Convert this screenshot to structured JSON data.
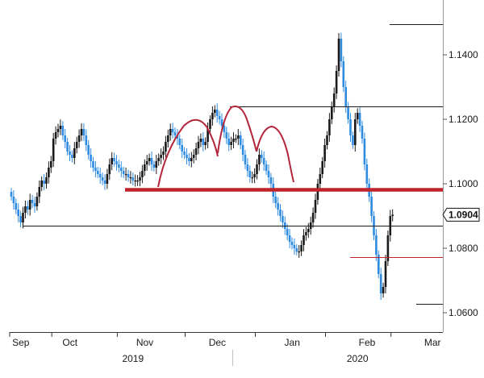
{
  "chart_data": {
    "type": "candlestick",
    "title": "",
    "xlabel": "",
    "ylabel": "",
    "ylim": [
      1.056,
      1.152
    ],
    "y_ticks": [
      "1.0600",
      "1.0800",
      "1.1000",
      "1.1200",
      "1.1400"
    ],
    "x_ticks": [
      {
        "label": "Sep",
        "index": 2
      },
      {
        "label": "Oct",
        "index": 23
      },
      {
        "label": "Nov",
        "index": 55
      },
      {
        "label": "Dec",
        "index": 86
      },
      {
        "label": "Jan",
        "index": 118
      },
      {
        "label": "Feb",
        "index": 150
      },
      {
        "label": "Mar",
        "index": 178
      }
    ],
    "years": [
      {
        "label": "2019",
        "index": 52
      },
      {
        "label": "2020",
        "index": 148
      }
    ],
    "last_price": "1.0904",
    "bullish_color": "#1a1a1a",
    "bearish_color": "#2f8be0",
    "close": [
      1.096,
      1.094,
      1.092,
      1.09,
      1.088,
      1.091,
      1.093,
      1.092,
      1.095,
      1.094,
      1.093,
      1.096,
      1.099,
      1.101,
      1.1,
      1.102,
      1.105,
      1.107,
      1.114,
      1.116,
      1.117,
      1.118,
      1.115,
      1.113,
      1.11,
      1.109,
      1.108,
      1.111,
      1.113,
      1.115,
      1.117,
      1.115,
      1.112,
      1.109,
      1.107,
      1.105,
      1.104,
      1.103,
      1.102,
      1.101,
      1.1,
      1.103,
      1.106,
      1.108,
      1.107,
      1.106,
      1.105,
      1.104,
      1.103,
      1.103,
      1.102,
      1.102,
      1.101,
      1.101,
      1.101,
      1.102,
      1.104,
      1.106,
      1.107,
      1.108,
      1.106,
      1.105,
      1.107,
      1.108,
      1.109,
      1.11,
      1.113,
      1.115,
      1.117,
      1.116,
      1.115,
      1.114,
      1.112,
      1.11,
      1.109,
      1.108,
      1.107,
      1.108,
      1.109,
      1.111,
      1.113,
      1.114,
      1.112,
      1.113,
      1.117,
      1.12,
      1.122,
      1.123,
      1.121,
      1.12,
      1.118,
      1.116,
      1.114,
      1.112,
      1.113,
      1.114,
      1.114,
      1.115,
      1.112,
      1.109,
      1.106,
      1.104,
      1.102,
      1.102,
      1.103,
      1.106,
      1.109,
      1.108,
      1.106,
      1.104,
      1.102,
      1.1,
      1.096,
      1.094,
      1.092,
      1.09,
      1.088,
      1.086,
      1.084,
      1.082,
      1.081,
      1.08,
      1.079,
      1.079,
      1.081,
      1.084,
      1.085,
      1.086,
      1.088,
      1.091,
      1.095,
      1.1,
      1.103,
      1.107,
      1.112,
      1.115,
      1.12,
      1.124,
      1.128,
      1.135,
      1.145,
      1.138,
      1.13,
      1.124,
      1.12,
      1.115,
      1.112,
      1.12,
      1.122,
      1.118,
      1.114,
      1.106,
      1.1,
      1.096,
      1.09,
      1.084,
      1.078,
      1.072,
      1.066,
      1.068,
      1.076,
      1.084,
      1.09,
      1.0904
    ]
  }
}
